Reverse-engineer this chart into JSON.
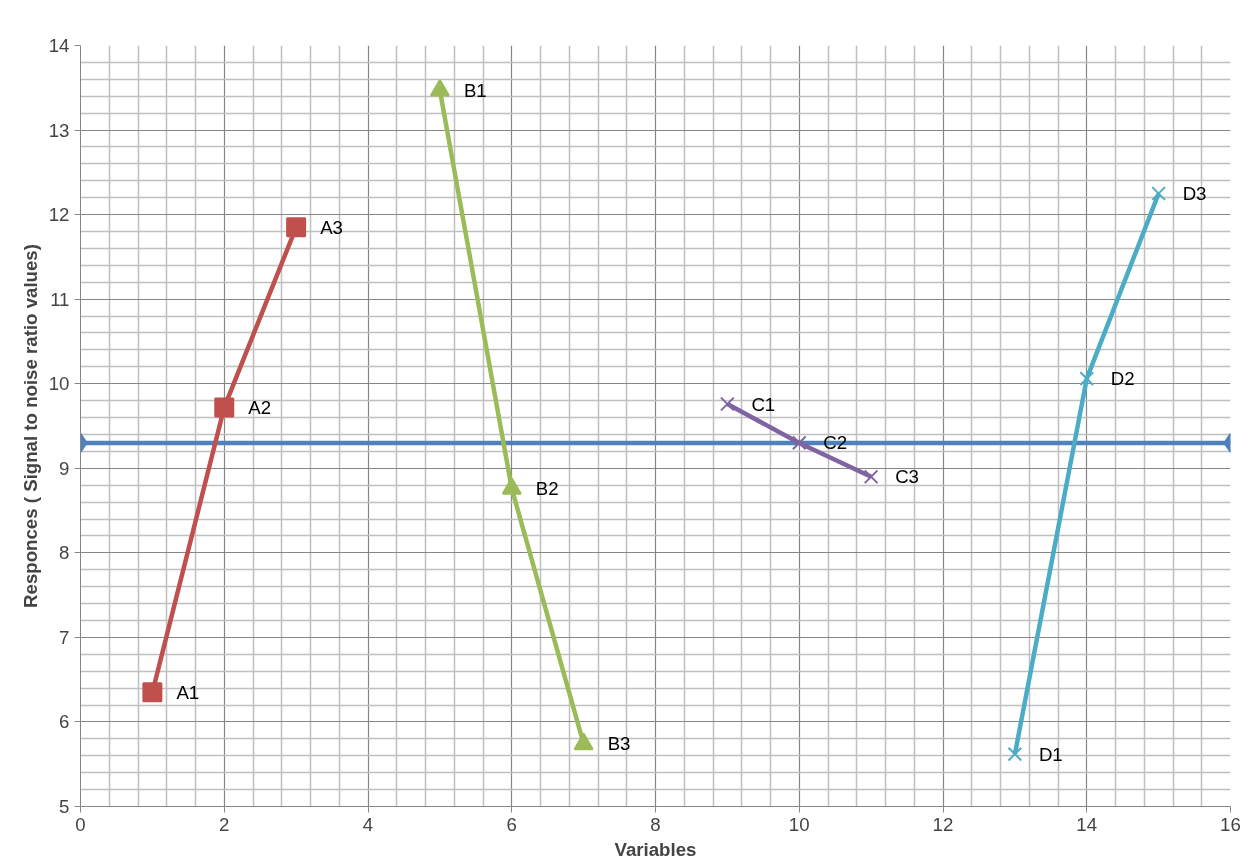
{
  "chart_data": {
    "type": "line",
    "xlabel": "Variables",
    "ylabel": "Responces ( Signal to noise ratio values)",
    "xlim": [
      0,
      16
    ],
    "xticks": [
      0,
      2,
      4,
      6,
      8,
      10,
      12,
      14,
      16
    ],
    "ylim": [
      5,
      14
    ],
    "yticks": [
      5,
      6,
      7,
      8,
      9,
      10,
      11,
      12,
      13,
      14
    ],
    "grid": true,
    "line_style": "solid",
    "series": [
      {
        "color": "#4f81bd",
        "marker": "diamond",
        "x": [
          0,
          16
        ],
        "values": [
          9.3,
          9.3
        ]
      },
      {
        "color": "#c0504d",
        "marker": "square",
        "x": [
          1,
          2,
          3
        ],
        "values": [
          6.35,
          9.72,
          11.85
        ]
      },
      {
        "color": "#9bbb59",
        "marker": "triangle",
        "x": [
          5,
          6,
          7
        ],
        "values": [
          13.47,
          8.76,
          5.74
        ]
      },
      {
        "color": "#8064a2",
        "marker": "cross",
        "x": [
          9,
          10,
          11
        ],
        "values": [
          9.76,
          9.3,
          8.9
        ]
      },
      {
        "color": "#4bacc6",
        "marker": "cross",
        "x": [
          13,
          14,
          15
        ],
        "values": [
          5.62,
          10.06,
          12.25
        ]
      }
    ],
    "annotations": [
      {
        "text": "A1",
        "x": 1,
        "y": 6.35
      },
      {
        "text": "A2",
        "x": 2,
        "y": 9.72
      },
      {
        "text": "A3",
        "x": 3,
        "y": 11.85
      },
      {
        "text": "B1",
        "x": 5,
        "y": 13.47
      },
      {
        "text": "B2",
        "x": 6,
        "y": 8.76
      },
      {
        "text": "B3",
        "x": 7,
        "y": 5.74
      },
      {
        "text": "C1",
        "x": 9,
        "y": 9.76
      },
      {
        "text": "C2",
        "x": 10,
        "y": 9.3
      },
      {
        "text": "C3",
        "x": 11,
        "y": 8.9
      },
      {
        "text": "D1",
        "x": 13,
        "y": 5.62
      },
      {
        "text": "D2",
        "x": 14,
        "y": 10.06
      },
      {
        "text": "D3",
        "x": 15,
        "y": 12.25
      }
    ]
  }
}
